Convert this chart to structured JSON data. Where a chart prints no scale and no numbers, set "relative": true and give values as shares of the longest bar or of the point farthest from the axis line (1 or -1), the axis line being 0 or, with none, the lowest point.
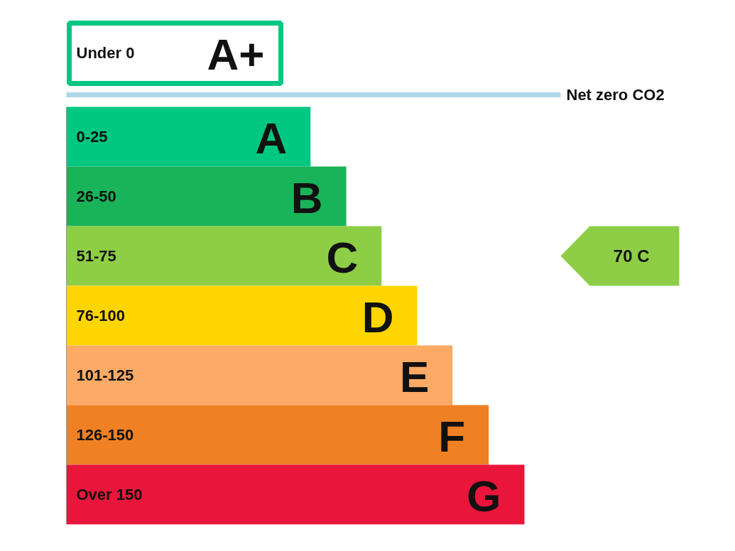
{
  "chart_data": {
    "type": "bar",
    "orientation": "horizontal",
    "relative": true,
    "categories": [
      "0-25",
      "26-50",
      "51-75",
      "76-100",
      "101-125",
      "126-150",
      "Over 150"
    ],
    "values": [
      0.533,
      0.611,
      0.688,
      0.766,
      0.843,
      0.922,
      1.0
    ],
    "colors": [
      "#00c781",
      "#19b459",
      "#8dce46",
      "#ffd500",
      "#fcaa65",
      "#ef8023",
      "#e9153b"
    ],
    "annotations": [
      "Under 0",
      "A+",
      "Net zero CO2",
      "70  C",
      "A",
      "B",
      "C",
      "D",
      "E",
      "F",
      "G"
    ]
  }
}
